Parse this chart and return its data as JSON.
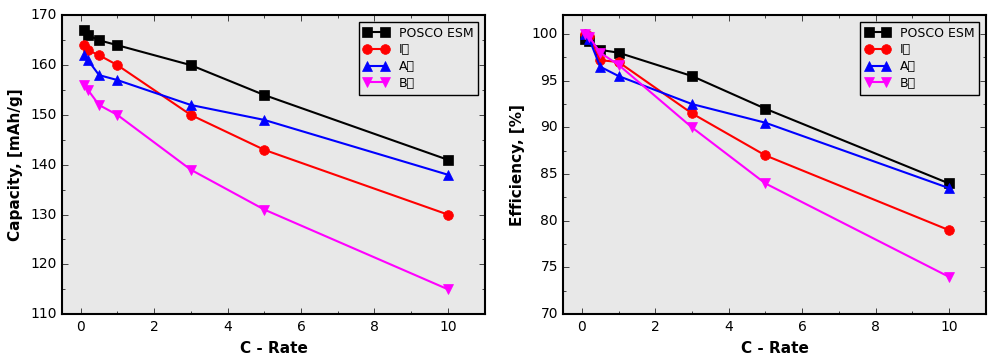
{
  "left_plot": {
    "xlabel": "C - Rate",
    "ylabel": "Capacity, [mAh/g]",
    "ylim": [
      110,
      170
    ],
    "yticks": [
      110,
      120,
      130,
      140,
      150,
      160,
      170
    ],
    "xlim": [
      -0.5,
      11
    ],
    "xticks": [
      0,
      2,
      4,
      6,
      8,
      10
    ],
    "series": {
      "POSCO ESM": {
        "x": [
          0.1,
          0.2,
          0.5,
          1,
          3,
          5,
          10
        ],
        "y": [
          167,
          166,
          165,
          164,
          160,
          154,
          141
        ],
        "color": "#000000",
        "marker": "s"
      },
      "I사": {
        "x": [
          0.1,
          0.2,
          0.5,
          1,
          3,
          5,
          10
        ],
        "y": [
          164,
          163,
          162,
          160,
          150,
          143,
          130
        ],
        "color": "#ff0000",
        "marker": "o"
      },
      "A사": {
        "x": [
          0.1,
          0.2,
          0.5,
          1,
          3,
          5,
          10
        ],
        "y": [
          162,
          161,
          158,
          157,
          152,
          149,
          138
        ],
        "color": "#0000ff",
        "marker": "^"
      },
      "B사": {
        "x": [
          0.1,
          0.2,
          0.5,
          1,
          3,
          5,
          10
        ],
        "y": [
          156,
          155,
          152,
          150,
          139,
          131,
          115
        ],
        "color": "#ff00ff",
        "marker": "v"
      }
    }
  },
  "right_plot": {
    "xlabel": "C - Rate",
    "ylabel": "Efficiency, [%]",
    "ylim": [
      70,
      102
    ],
    "yticks": [
      70,
      75,
      80,
      85,
      90,
      95,
      100
    ],
    "xlim": [
      -0.5,
      11
    ],
    "xticks": [
      0,
      2,
      4,
      6,
      8,
      10
    ],
    "series": {
      "POSCO ESM": {
        "x": [
          0.1,
          0.2,
          0.5,
          1,
          3,
          5,
          10
        ],
        "y": [
          99.5,
          99.3,
          98.3,
          98.0,
          95.5,
          92.0,
          84.0
        ],
        "color": "#000000",
        "marker": "s"
      },
      "I사": {
        "x": [
          0.1,
          0.2,
          0.5,
          1,
          3,
          5,
          10
        ],
        "y": [
          100.0,
          99.8,
          97.2,
          97.0,
          91.5,
          87.0,
          79.0
        ],
        "color": "#ff0000",
        "marker": "o"
      },
      "A사": {
        "x": [
          0.1,
          0.2,
          0.5,
          1,
          3,
          5,
          10
        ],
        "y": [
          100.0,
          99.5,
          96.5,
          95.5,
          92.5,
          90.5,
          83.5
        ],
        "color": "#0000ff",
        "marker": "^"
      },
      "B사": {
        "x": [
          0.1,
          0.2,
          0.5,
          1,
          3,
          5,
          10
        ],
        "y": [
          100.0,
          99.7,
          98.0,
          96.7,
          90.0,
          84.0,
          74.0
        ],
        "color": "#ff00ff",
        "marker": "v"
      }
    }
  },
  "figure_bg": "#e8e8e8",
  "axes_bg": "#e8e8e8",
  "font_size": 10,
  "label_fontsize": 11,
  "legend_fontsize": 9,
  "marker_size": 7,
  "line_width": 1.5
}
